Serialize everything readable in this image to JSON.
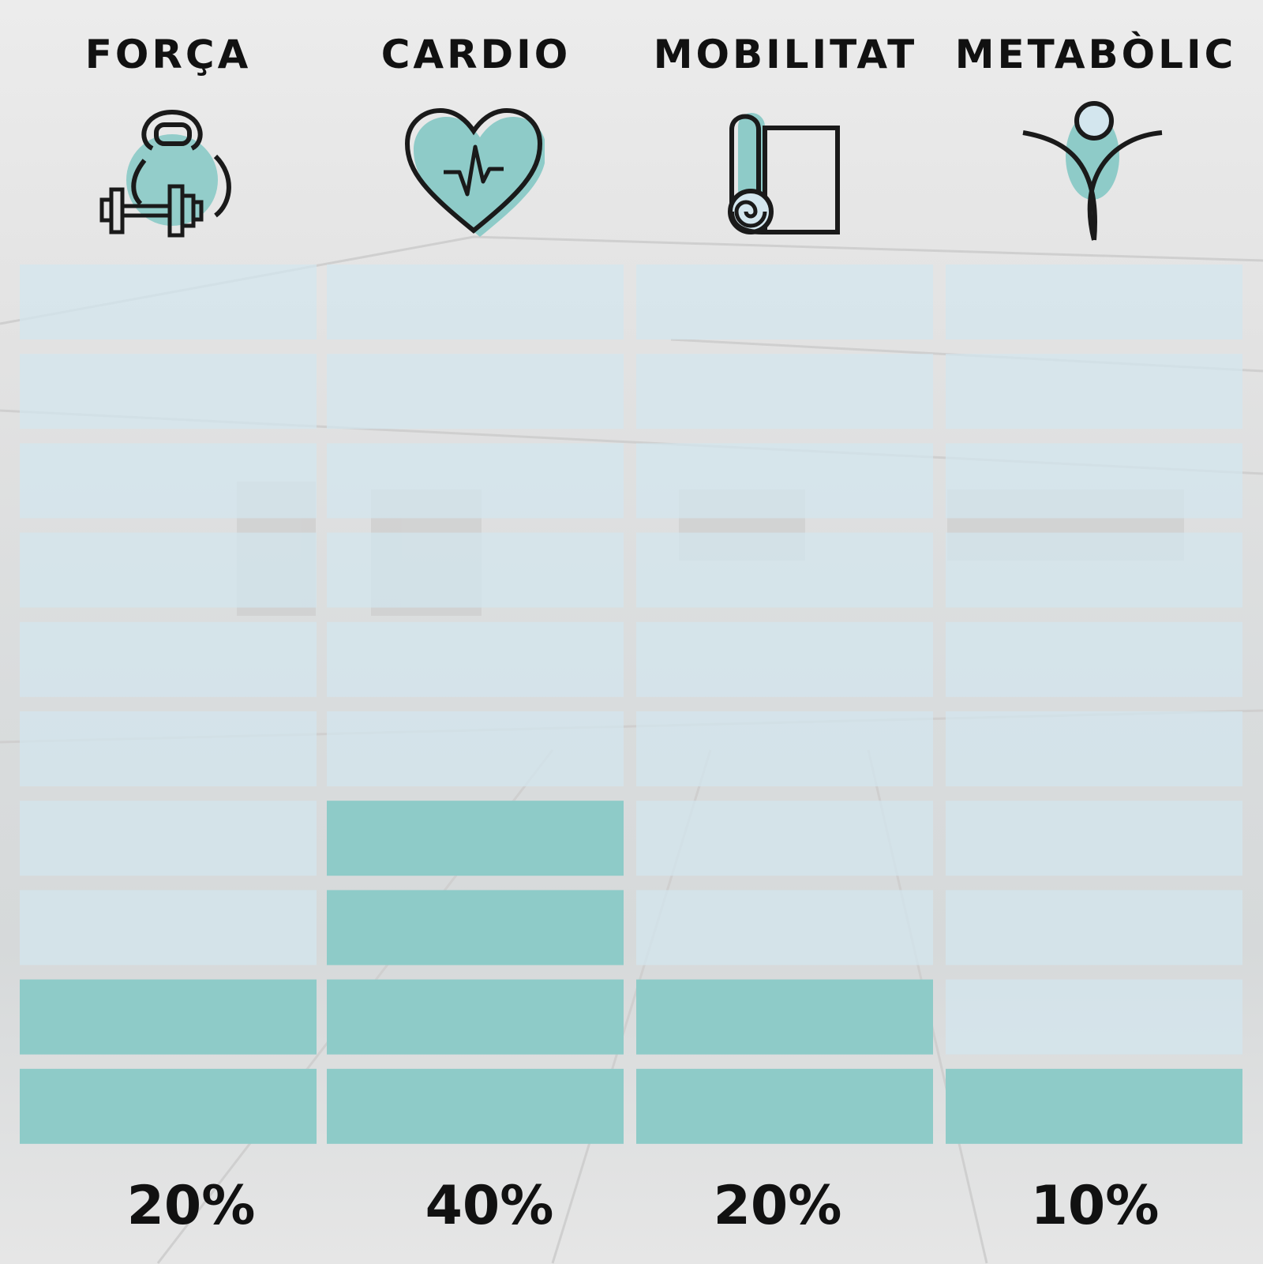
{
  "chart_data": {
    "type": "bar",
    "style": "stacked-block-levels",
    "levels_total": 10,
    "categories": [
      "FORÇA",
      "CARDIO",
      "MOBILITAT",
      "METABÒLIC"
    ],
    "values": [
      20,
      40,
      20,
      10
    ],
    "value_labels": [
      "20%",
      "40%",
      "20%",
      "10%"
    ],
    "ylim": [
      0,
      100
    ],
    "icons": [
      "kettlebell-dumbbell-icon",
      "heart-pulse-icon",
      "yoga-mat-icon",
      "person-figure-icon"
    ],
    "colors": {
      "filled": "#8ecbc8",
      "empty": "#d3e6ee",
      "accent": "#8ecbc8",
      "text": "#111111"
    },
    "grid": false
  }
}
